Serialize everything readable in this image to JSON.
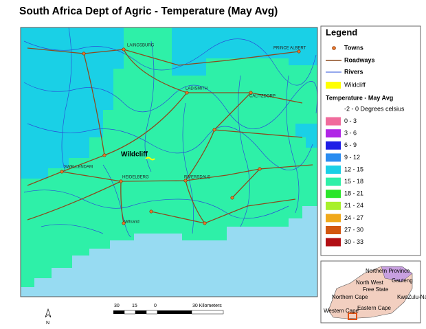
{
  "title": "South Africa Dept of Agric - Temperature (May Avg)",
  "map": {
    "towns": [
      "LAINGSBURG",
      "PRINCE ALBERT",
      "LADISMITH",
      "CALITZDORP",
      "SWELLENDAM",
      "HEIDELBERG",
      "RIVERSDALE",
      "Witsand"
    ],
    "site": "Wildcliff"
  },
  "legend": {
    "title": "Legend",
    "items": [
      "Towns",
      "Roadways",
      "Rivers",
      "Wildcliff"
    ],
    "temperature_title": "Temperature - May Avg",
    "classes": [
      {
        "label": "-2 - 0 Degrees celsius"
      },
      {
        "label": "0 - 3",
        "color": "#f06b9c"
      },
      {
        "label": "3 - 6",
        "color": "#b026e6"
      },
      {
        "label": "6 - 9",
        "color": "#1f1fe6"
      },
      {
        "label": "9 - 12",
        "color": "#2a8cf0"
      },
      {
        "label": "12 - 15",
        "color": "#1ad0e6"
      },
      {
        "label": "15 - 18",
        "color": "#2ef0a8"
      },
      {
        "label": "18 - 21",
        "color": "#2ae62a"
      },
      {
        "label": "21 - 24",
        "color": "#a8f02a"
      },
      {
        "label": "24 - 27",
        "color": "#f0a81a"
      },
      {
        "label": "27 - 30",
        "color": "#d2560f"
      },
      {
        "label": "30 - 33",
        "color": "#b20f14"
      }
    ]
  },
  "scale_bar": {
    "labels": [
      "30",
      "15",
      "0",
      "30 Kilometers"
    ]
  },
  "north": "N",
  "inset": {
    "labels": [
      "Northern Province",
      "Gauteng",
      "North West",
      "Free State",
      "KwaZulu-Natal",
      "Northern Cape",
      "Eastern Cape",
      "Western Cape"
    ]
  }
}
